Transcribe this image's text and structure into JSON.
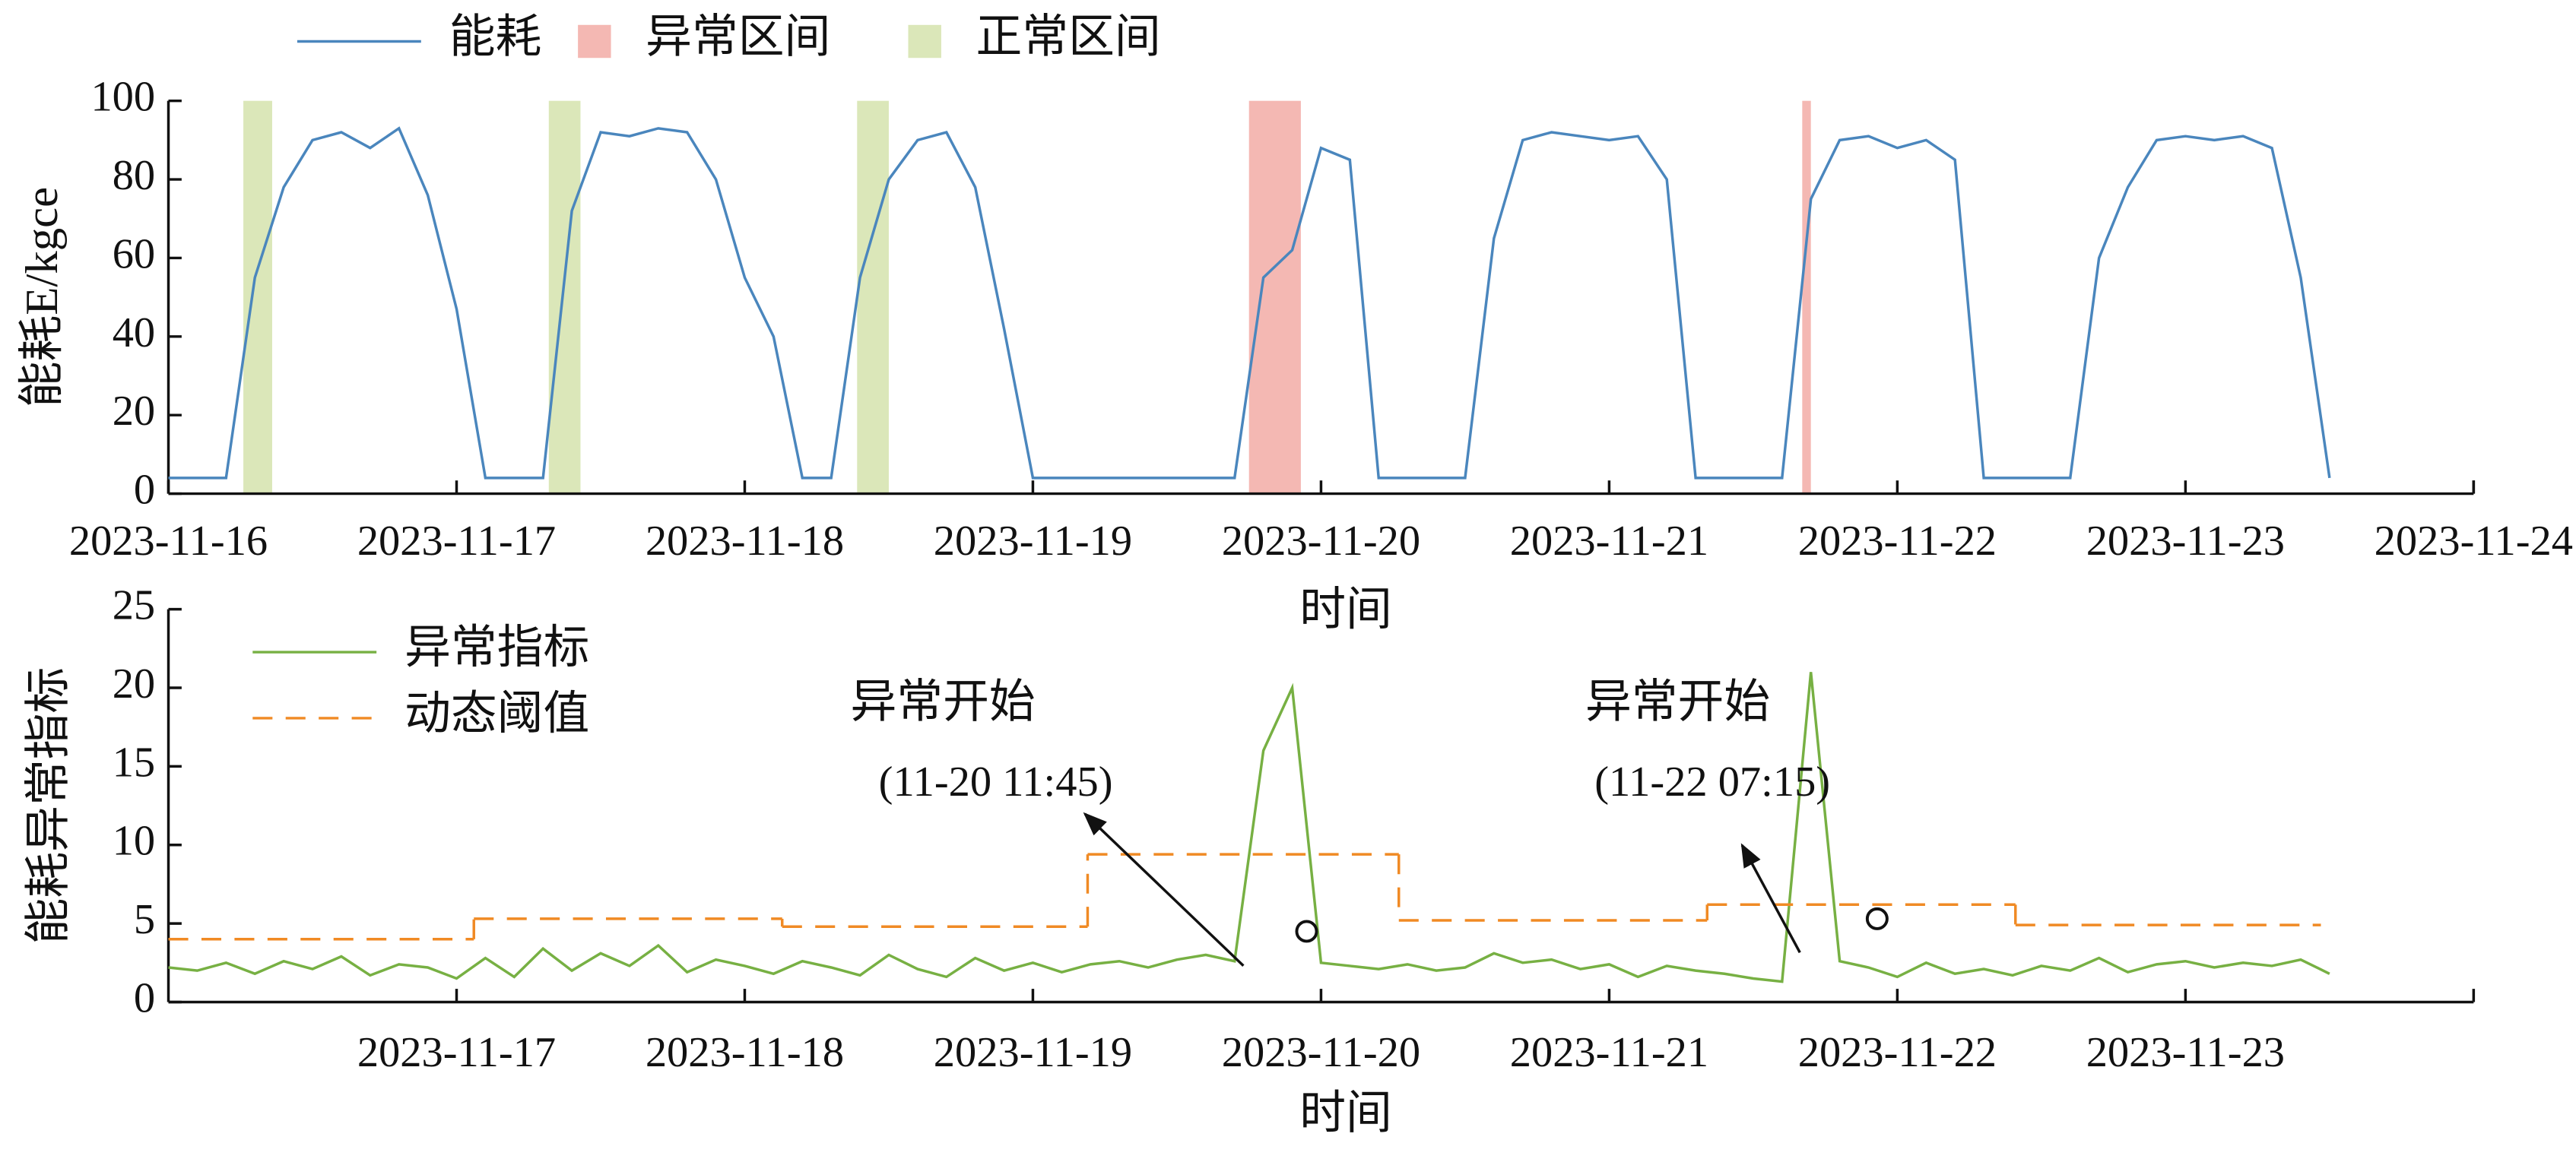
{
  "chart_data": [
    {
      "type": "line",
      "ylabel": "能耗E/kgce",
      "xlabel": "时间",
      "xlim": [
        0,
        8
      ],
      "ylim": [
        0,
        100
      ],
      "yticks": [
        0,
        20,
        40,
        60,
        80,
        100
      ],
      "xticks": [
        {
          "value": 0,
          "label": "2023-11-16"
        },
        {
          "value": 1,
          "label": "2023-11-17"
        },
        {
          "value": 2,
          "label": "2023-11-18"
        },
        {
          "value": 3,
          "label": "2023-11-19"
        },
        {
          "value": 4,
          "label": "2023-11-20"
        },
        {
          "value": 5,
          "label": "2023-11-21"
        },
        {
          "value": 6,
          "label": "2023-11-22"
        },
        {
          "value": 7,
          "label": "2023-11-23"
        },
        {
          "value": 8,
          "label": "2023-11-24"
        }
      ],
      "series": [
        {
          "name": "能耗",
          "color": "#4a86bd",
          "x": [
            0,
            0.1,
            0.2,
            0.3,
            0.4,
            0.5,
            0.6,
            0.7,
            0.8,
            0.9,
            1,
            1.1,
            1.2,
            1.3,
            1.4,
            1.5,
            1.6,
            1.7,
            1.8,
            1.9,
            2,
            2.1,
            2.2,
            2.3,
            2.4,
            2.5,
            2.6,
            2.7,
            2.8,
            2.9,
            3,
            3.1,
            3.2,
            3.3,
            3.4,
            3.5,
            3.6,
            3.7,
            3.8,
            3.9,
            4,
            4.1,
            4.2,
            4.3,
            4.4,
            4.5,
            4.6,
            4.7,
            4.8,
            4.9,
            5,
            5.1,
            5.2,
            5.3,
            5.4,
            5.5,
            5.6,
            5.7,
            5.8,
            5.9,
            6,
            6.1,
            6.2,
            6.3,
            6.4,
            6.5,
            6.6,
            6.7,
            6.8,
            6.9,
            7,
            7.1,
            7.2,
            7.3,
            7.4,
            7.5
          ],
          "values": [
            4,
            4,
            4,
            55,
            78,
            90,
            92,
            88,
            93,
            76,
            47,
            4,
            4,
            4,
            72,
            92,
            91,
            93,
            92,
            80,
            55,
            40,
            4,
            4,
            55,
            80,
            90,
            92,
            78,
            42,
            4,
            4,
            4,
            4,
            4,
            4,
            4,
            4,
            55,
            62,
            88,
            85,
            4,
            4,
            4,
            4,
            65,
            90,
            92,
            91,
            90,
            91,
            80,
            4,
            4,
            4,
            4,
            75,
            90,
            91,
            88,
            90,
            85,
            4,
            4,
            4,
            4,
            60,
            78,
            90,
            91,
            90,
            91,
            88,
            55,
            4
          ]
        }
      ],
      "regions": [
        {
          "name": "异常区间",
          "color": "#f4b8b3",
          "spans": [
            [
              3.75,
              3.93
            ],
            [
              5.67,
              5.7
            ]
          ]
        },
        {
          "name": "正常区间",
          "color": "#dbe7b9",
          "spans": [
            [
              0.26,
              0.36
            ],
            [
              1.32,
              1.43
            ],
            [
              2.39,
              2.5
            ]
          ]
        }
      ]
    },
    {
      "type": "line",
      "ylabel": "能耗异常指标",
      "xlabel": "时间",
      "xlim": [
        0,
        8
      ],
      "ylim": [
        0,
        25
      ],
      "yticks": [
        0,
        5,
        10,
        15,
        20,
        25
      ],
      "xticks": [
        {
          "value": 1,
          "label": "2023-11-17"
        },
        {
          "value": 2,
          "label": "2023-11-18"
        },
        {
          "value": 3,
          "label": "2023-11-19"
        },
        {
          "value": 4,
          "label": "2023-11-20"
        },
        {
          "value": 5,
          "label": "2023-11-21"
        },
        {
          "value": 6,
          "label": "2023-11-22"
        },
        {
          "value": 7,
          "label": "2023-11-23"
        }
      ],
      "series": [
        {
          "name": "异常指标",
          "color": "#77b043",
          "x": [
            0,
            0.1,
            0.2,
            0.3,
            0.4,
            0.5,
            0.6,
            0.7,
            0.8,
            0.9,
            1,
            1.1,
            1.2,
            1.3,
            1.4,
            1.5,
            1.6,
            1.7,
            1.8,
            1.9,
            2,
            2.1,
            2.2,
            2.3,
            2.4,
            2.5,
            2.6,
            2.7,
            2.8,
            2.9,
            3,
            3.1,
            3.2,
            3.3,
            3.4,
            3.5,
            3.6,
            3.7,
            3.8,
            3.9,
            4,
            4.1,
            4.2,
            4.3,
            4.4,
            4.5,
            4.6,
            4.7,
            4.8,
            4.9,
            5,
            5.1,
            5.2,
            5.3,
            5.4,
            5.5,
            5.6,
            5.7,
            5.8,
            5.9,
            6,
            6.1,
            6.2,
            6.3,
            6.4,
            6.5,
            6.6,
            6.7,
            6.8,
            6.9,
            7,
            7.1,
            7.2,
            7.3,
            7.4,
            7.5
          ],
          "values": [
            2.2,
            2.0,
            2.5,
            1.8,
            2.6,
            2.1,
            2.9,
            1.7,
            2.4,
            2.2,
            1.5,
            2.8,
            1.6,
            3.4,
            2.0,
            3.1,
            2.3,
            3.6,
            1.9,
            2.7,
            2.3,
            1.8,
            2.6,
            2.2,
            1.7,
            3.0,
            2.1,
            1.6,
            2.8,
            2.0,
            2.5,
            1.9,
            2.4,
            2.6,
            2.2,
            2.7,
            3.0,
            2.6,
            16,
            20,
            2.5,
            2.3,
            2.1,
            2.4,
            2.0,
            2.2,
            3.1,
            2.5,
            2.7,
            2.1,
            2.4,
            1.6,
            2.3,
            2.0,
            1.8,
            1.5,
            1.3,
            21,
            2.6,
            2.2,
            1.6,
            2.5,
            1.8,
            2.1,
            1.7,
            2.3,
            2.0,
            2.8,
            1.9,
            2.4,
            2.6,
            2.2,
            2.5,
            2.3,
            2.7,
            1.8
          ]
        }
      ],
      "threshold": {
        "name": "动态阈值",
        "color": "#f08a24",
        "edges": [
          0,
          1.06,
          2.13,
          3.19,
          4.27,
          5.34,
          6.41,
          7.47
        ],
        "values": [
          4,
          5.3,
          4.8,
          9.4,
          5.2,
          6.2,
          4.9
        ]
      },
      "points": {
        "x": [
          3.95,
          5.93
        ],
        "values": [
          4.5,
          5.3
        ]
      },
      "annotations": [
        {
          "lines": [
            "异常开始",
            "(11-20 11:45)"
          ]
        },
        {
          "lines": [
            "异常开始",
            "(11-22 07:15)"
          ]
        }
      ]
    }
  ]
}
